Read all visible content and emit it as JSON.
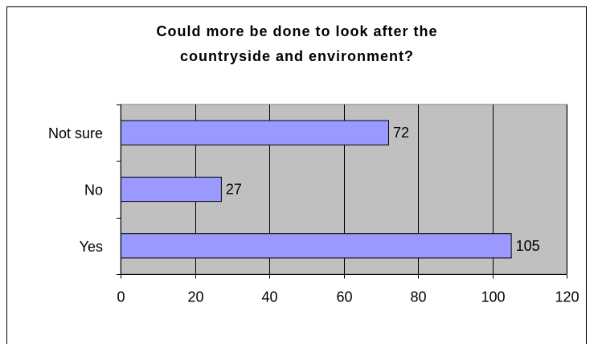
{
  "chart_data": {
    "type": "bar",
    "orientation": "horizontal",
    "title_lines": [
      "Could more be done to look after the",
      "countryside and environment?"
    ],
    "categories": [
      "Not sure",
      "No",
      "Yes"
    ],
    "values": [
      72,
      27,
      105
    ],
    "xlim": [
      0,
      120
    ],
    "xticks": [
      0,
      20,
      40,
      60,
      80,
      100,
      120
    ],
    "xlabel": "",
    "ylabel": "",
    "grid": "vertical",
    "legend": "none",
    "colors": {
      "bar_fill": "#9999ff",
      "plot_background": "#c0c0c0",
      "gridline": "#000000"
    }
  }
}
